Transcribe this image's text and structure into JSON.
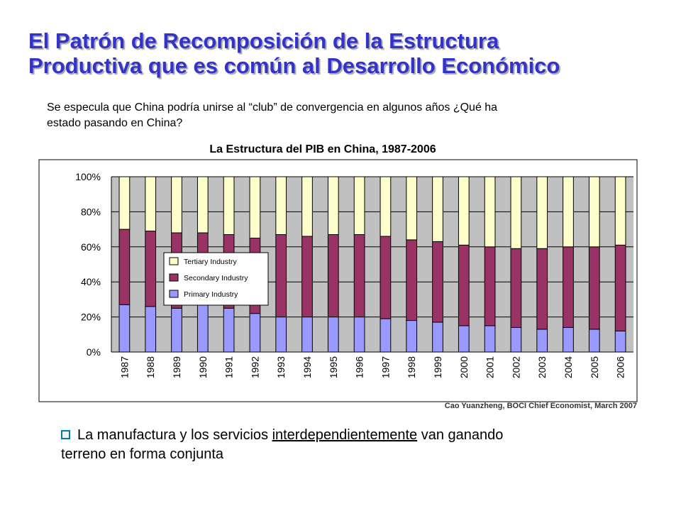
{
  "slide": {
    "title_line1": "El Patrón de Recomposición de la Estructura",
    "title_line2": "Productiva que es común al Desarrollo Económico",
    "intro_line1": "Se especula que China podría unirse al “club” de convergencia en algunos años ¿Qué ha",
    "intro_line2": "estado pasando en China?",
    "source": "Cao Yuanzheng, BOCI Chief Economist, March 2007",
    "bullet_pre": "La manufactura y los servicios ",
    "bullet_underlined": "interdependientemente",
    "bullet_post": " van ganando",
    "bullet_line2": "terreno en forma conjunta"
  },
  "chart_data": {
    "type": "bar",
    "stacked": true,
    "title": "La Estructura del PIB en China, 1987-2006",
    "xlabel": "",
    "ylabel": "",
    "ylim": [
      0,
      100
    ],
    "yticks": [
      "0%",
      "20%",
      "40%",
      "60%",
      "80%",
      "100%"
    ],
    "categories": [
      "1987",
      "1988",
      "1989",
      "1990",
      "1991",
      "1992",
      "1993",
      "1994",
      "1995",
      "1996",
      "1997",
      "1998",
      "1999",
      "2000",
      "2001",
      "2002",
      "2003",
      "2004",
      "2005",
      "2006"
    ],
    "series": [
      {
        "name": "Primary Industry",
        "color": "#9999ff",
        "values": [
          27,
          26,
          25,
          27,
          25,
          22,
          20,
          20,
          20,
          20,
          19,
          18,
          17,
          15,
          15,
          14,
          13,
          14,
          13,
          12
        ]
      },
      {
        "name": "Secondary Industry",
        "color": "#993366",
        "values": [
          43,
          43,
          43,
          41,
          42,
          43,
          47,
          46,
          47,
          47,
          47,
          46,
          46,
          46,
          45,
          45,
          46,
          46,
          47,
          49
        ]
      },
      {
        "name": "Tertiary Industry",
        "color": "#ffffcc",
        "values": [
          30,
          31,
          32,
          32,
          33,
          35,
          33,
          34,
          33,
          33,
          34,
          36,
          37,
          39,
          40,
          41,
          41,
          40,
          40,
          39
        ]
      }
    ],
    "legend_order": [
      "Tertiary Industry",
      "Secondary Industry",
      "Primary Industry"
    ],
    "legend_position": "left-center",
    "plot_background": "#c0c0c0",
    "grid": true
  }
}
